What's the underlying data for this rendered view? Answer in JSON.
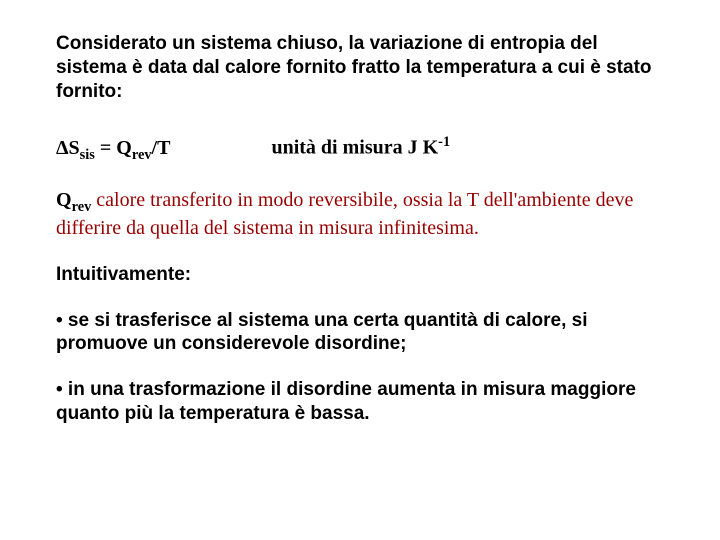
{
  "para1": "Considerato un sistema chiuso, la variazione di entropia del sistema è data dal calore fornito fratto la temperatura a cui è stato fornito:",
  "formula": {
    "delta": "Δ",
    "S": "S",
    "sis": "sis",
    "eq": " = Q",
    "rev": "rev",
    "overT": "/T",
    "unit_pre": "unità di misura J K",
    "unit_sup": "-1"
  },
  "qrev": {
    "Q": "Q",
    "rev": "rev",
    "text": " calore transferito in modo reversibile, ossia la T dell'ambiente deve differire da quella del sistema in misura infinitesima."
  },
  "intuitivamente": "Intuitivamente:",
  "bullet1": "• se si trasferisce al sistema una certa quantità di calore, si promuove un considerevole disordine;",
  "bullet2": "• in una trasformazione il disordine aumenta in misura maggiore quanto più la temperatura è bassa."
}
